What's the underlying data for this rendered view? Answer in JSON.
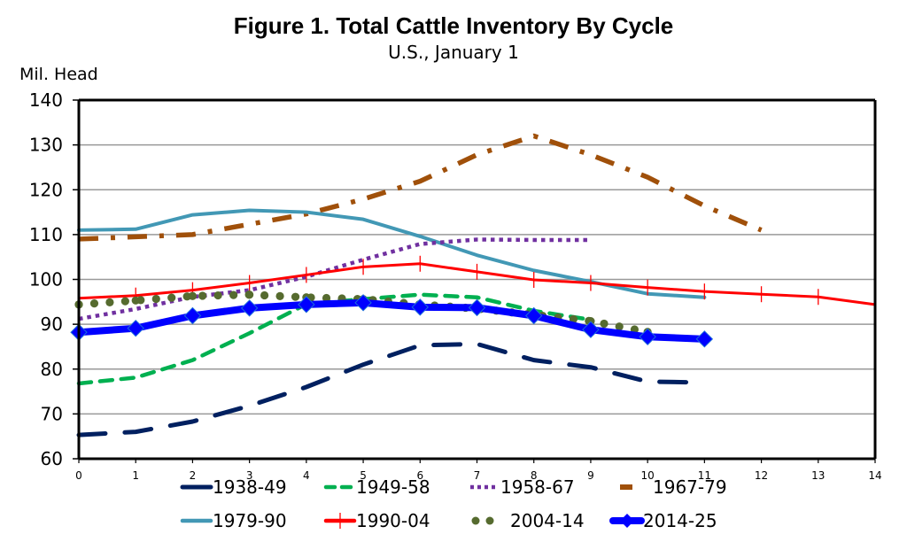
{
  "chart_data": {
    "type": "line",
    "title": "Figure 1. Total Cattle Inventory By Cycle",
    "subtitle": "U.S., January 1",
    "ylabel": "Mil. Head",
    "xlabel": "",
    "xlim": [
      0,
      14
    ],
    "ylim": [
      60,
      140
    ],
    "x_ticks": [
      0,
      1,
      2,
      3,
      4,
      5,
      6,
      7,
      8,
      9,
      10,
      11,
      12,
      13,
      14
    ],
    "y_ticks": [
      60,
      70,
      80,
      90,
      100,
      110,
      120,
      130,
      140
    ],
    "grid": "horizontal",
    "legend_position": "bottom",
    "series": [
      {
        "name": "1938-49",
        "color": "#002060",
        "style": "long-dash",
        "values": [
          65.3,
          66.0,
          68.3,
          71.8,
          76.0,
          81.0,
          85.3,
          85.6,
          82.0,
          80.4,
          77.2,
          77.0
        ]
      },
      {
        "name": "1949-58",
        "color": "#00b050",
        "style": "dash",
        "values": [
          76.8,
          78.1,
          82.0,
          88.0,
          94.5,
          95.6,
          96.6,
          96.0,
          93.0,
          91.0
        ]
      },
      {
        "name": "1958-67",
        "color": "#7030a0",
        "style": "dot",
        "values": [
          91.2,
          93.4,
          96.1,
          97.6,
          100.6,
          104.4,
          107.9,
          108.9,
          108.8,
          108.8
        ]
      },
      {
        "name": "1967-79",
        "color": "#a0500a",
        "style": "dash-dot",
        "values": [
          109.0,
          109.5,
          110.0,
          112.3,
          114.6,
          117.9,
          121.9,
          127.8,
          132.0,
          127.8,
          122.8,
          116.4,
          111.0
        ]
      },
      {
        "name": "1979-90",
        "color": "#4298b5",
        "style": "solid",
        "values": [
          111.0,
          111.2,
          114.4,
          115.4,
          115.0,
          113.4,
          109.6,
          105.4,
          102.0,
          99.5,
          96.8,
          96.0
        ]
      },
      {
        "name": "1990-04",
        "color": "#ff0000",
        "style": "solid-plus",
        "values": [
          95.8,
          96.4,
          97.6,
          99.2,
          101.0,
          102.8,
          103.5,
          101.7,
          99.9,
          99.2,
          98.2,
          97.3,
          96.7,
          96.1,
          94.4
        ]
      },
      {
        "name": "2004-14",
        "color": "#566b2f",
        "style": "round-dot",
        "values": [
          94.4,
          95.3,
          96.3,
          96.6,
          96.0,
          95.6,
          94.4,
          93.5,
          92.1,
          90.7,
          88.3
        ]
      },
      {
        "name": "2014-25",
        "color": "#0000ff",
        "style": "thick-diamond",
        "values": [
          88.2,
          89.1,
          91.9,
          93.6,
          94.4,
          94.8,
          93.8,
          93.7,
          91.9,
          88.8,
          87.2,
          86.7
        ]
      }
    ]
  }
}
